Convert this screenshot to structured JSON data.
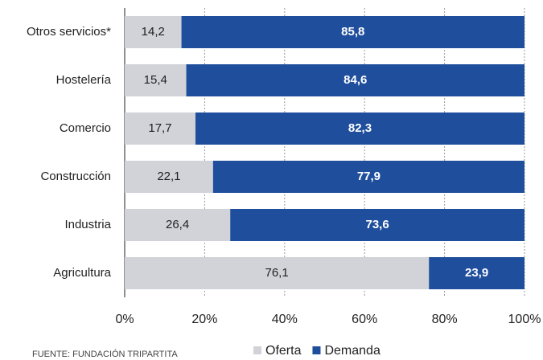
{
  "chart_data": {
    "type": "stacked_bar_horizontal",
    "categories": [
      "Otros servicios*",
      "Hostelería",
      "Comercio",
      "Construcción",
      "Industria",
      "Agricultura"
    ],
    "series": [
      {
        "name": "Oferta",
        "color": "#d1d3d8",
        "values": [
          14.2,
          15.4,
          17.7,
          22.1,
          26.4,
          76.1
        ],
        "value_labels": [
          "14,2",
          "15,4",
          "17,7",
          "22,1",
          "26,4",
          "76,1"
        ]
      },
      {
        "name": "Demanda",
        "color": "#1f4e9c",
        "values": [
          85.8,
          84.6,
          82.3,
          77.9,
          73.6,
          23.9
        ],
        "value_labels": [
          "85,8",
          "84,6",
          "82,3",
          "77,9",
          "73,6",
          "23,9"
        ]
      }
    ],
    "xlim": [
      0,
      100
    ],
    "xticks": [
      {
        "value": 0,
        "label": "0%"
      },
      {
        "value": 20,
        "label": "20%"
      },
      {
        "value": 40,
        "label": "40%"
      },
      {
        "value": 60,
        "label": "60%"
      },
      {
        "value": 80,
        "label": "80%"
      },
      {
        "value": 100,
        "label": "100%"
      }
    ],
    "grid": true,
    "legend": "bottom",
    "source": "FUENTE: FUNDACIÓN TRIPARTITA"
  }
}
